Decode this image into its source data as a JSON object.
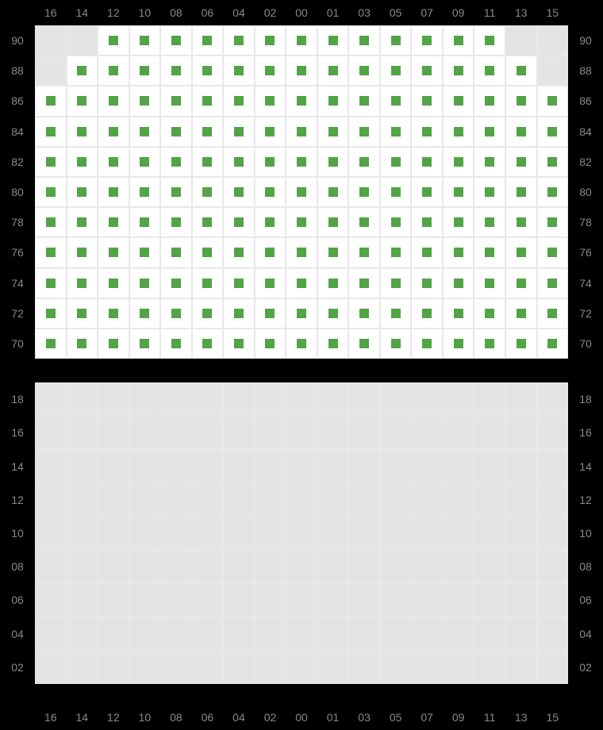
{
  "cols": [
    "16",
    "14",
    "12",
    "10",
    "08",
    "06",
    "04",
    "02",
    "00",
    "01",
    "03",
    "05",
    "07",
    "09",
    "11",
    "13",
    "15"
  ],
  "upper": {
    "rows": [
      "90",
      "88",
      "86",
      "84",
      "82",
      "80",
      "78",
      "76",
      "74",
      "72",
      "70"
    ],
    "cell_color_available": "#ffffff",
    "cell_color_unavailable": "#e4e4e4",
    "marker_color": "#52a447",
    "border_color": "#e8e8e8",
    "cells": {
      "90": {
        "16": 0,
        "14": 0,
        "12": 1,
        "10": 1,
        "08": 1,
        "06": 1,
        "04": 1,
        "02": 1,
        "00": 1,
        "01": 1,
        "03": 1,
        "05": 1,
        "07": 1,
        "09": 1,
        "11": 1,
        "13": 0,
        "15": 0
      },
      "88": {
        "16": 0,
        "14": 1,
        "12": 1,
        "10": 1,
        "08": 1,
        "06": 1,
        "04": 1,
        "02": 1,
        "00": 1,
        "01": 1,
        "03": 1,
        "05": 1,
        "07": 1,
        "09": 1,
        "11": 1,
        "13": 1,
        "15": 0
      },
      "86": {
        "16": 1,
        "14": 1,
        "12": 1,
        "10": 1,
        "08": 1,
        "06": 1,
        "04": 1,
        "02": 1,
        "00": 1,
        "01": 1,
        "03": 1,
        "05": 1,
        "07": 1,
        "09": 1,
        "11": 1,
        "13": 1,
        "15": 1
      },
      "84": {
        "16": 1,
        "14": 1,
        "12": 1,
        "10": 1,
        "08": 1,
        "06": 1,
        "04": 1,
        "02": 1,
        "00": 1,
        "01": 1,
        "03": 1,
        "05": 1,
        "07": 1,
        "09": 1,
        "11": 1,
        "13": 1,
        "15": 1
      },
      "82": {
        "16": 1,
        "14": 1,
        "12": 1,
        "10": 1,
        "08": 1,
        "06": 1,
        "04": 1,
        "02": 1,
        "00": 1,
        "01": 1,
        "03": 1,
        "05": 1,
        "07": 1,
        "09": 1,
        "11": 1,
        "13": 1,
        "15": 1
      },
      "80": {
        "16": 1,
        "14": 1,
        "12": 1,
        "10": 1,
        "08": 1,
        "06": 1,
        "04": 1,
        "02": 1,
        "00": 1,
        "01": 1,
        "03": 1,
        "05": 1,
        "07": 1,
        "09": 1,
        "11": 1,
        "13": 1,
        "15": 1
      },
      "78": {
        "16": 1,
        "14": 1,
        "12": 1,
        "10": 1,
        "08": 1,
        "06": 1,
        "04": 1,
        "02": 1,
        "00": 1,
        "01": 1,
        "03": 1,
        "05": 1,
        "07": 1,
        "09": 1,
        "11": 1,
        "13": 1,
        "15": 1
      },
      "76": {
        "16": 1,
        "14": 1,
        "12": 1,
        "10": 1,
        "08": 1,
        "06": 1,
        "04": 1,
        "02": 1,
        "00": 1,
        "01": 1,
        "03": 1,
        "05": 1,
        "07": 1,
        "09": 1,
        "11": 1,
        "13": 1,
        "15": 1
      },
      "74": {
        "16": 1,
        "14": 1,
        "12": 1,
        "10": 1,
        "08": 1,
        "06": 1,
        "04": 1,
        "02": 1,
        "00": 1,
        "01": 1,
        "03": 1,
        "05": 1,
        "07": 1,
        "09": 1,
        "11": 1,
        "13": 1,
        "15": 1
      },
      "72": {
        "16": 1,
        "14": 1,
        "12": 1,
        "10": 1,
        "08": 1,
        "06": 1,
        "04": 1,
        "02": 1,
        "00": 1,
        "01": 1,
        "03": 1,
        "05": 1,
        "07": 1,
        "09": 1,
        "11": 1,
        "13": 1,
        "15": 1
      },
      "70": {
        "16": 1,
        "14": 1,
        "12": 1,
        "10": 1,
        "08": 1,
        "06": 1,
        "04": 1,
        "02": 1,
        "00": 1,
        "01": 1,
        "03": 1,
        "05": 1,
        "07": 1,
        "09": 1,
        "11": 1,
        "13": 1,
        "15": 1
      }
    }
  },
  "lower": {
    "rows": [
      "18",
      "16",
      "14",
      "12",
      "10",
      "08",
      "06",
      "04",
      "02"
    ],
    "cell_color_unavailable": "#e4e4e4",
    "border_color": "#e8e8e8",
    "cells": {
      "18": {
        "16": 0,
        "14": 0,
        "12": 0,
        "10": 0,
        "08": 0,
        "06": 0,
        "04": 0,
        "02": 0,
        "00": 0,
        "01": 0,
        "03": 0,
        "05": 0,
        "07": 0,
        "09": 0,
        "11": 0,
        "13": 0,
        "15": 0
      },
      "16": {
        "16": 0,
        "14": 0,
        "12": 0,
        "10": 0,
        "08": 0,
        "06": 0,
        "04": 0,
        "02": 0,
        "00": 0,
        "01": 0,
        "03": 0,
        "05": 0,
        "07": 0,
        "09": 0,
        "11": 0,
        "13": 0,
        "15": 0
      },
      "14": {
        "16": 0,
        "14": 0,
        "12": 0,
        "10": 0,
        "08": 0,
        "06": 0,
        "04": 0,
        "02": 0,
        "00": 0,
        "01": 0,
        "03": 0,
        "05": 0,
        "07": 0,
        "09": 0,
        "11": 0,
        "13": 0,
        "15": 0
      },
      "12": {
        "16": 0,
        "14": 0,
        "12": 0,
        "10": 0,
        "08": 0,
        "06": 0,
        "04": 0,
        "02": 0,
        "00": 0,
        "01": 0,
        "03": 0,
        "05": 0,
        "07": 0,
        "09": 0,
        "11": 0,
        "13": 0,
        "15": 0
      },
      "10": {
        "16": 0,
        "14": 0,
        "12": 0,
        "10": 0,
        "08": 0,
        "06": 0,
        "04": 0,
        "02": 0,
        "00": 0,
        "01": 0,
        "03": 0,
        "05": 0,
        "07": 0,
        "09": 0,
        "11": 0,
        "13": 0,
        "15": 0
      },
      "08": {
        "16": 0,
        "14": 0,
        "12": 0,
        "10": 0,
        "08": 0,
        "06": 0,
        "04": 0,
        "02": 0,
        "00": 0,
        "01": 0,
        "03": 0,
        "05": 0,
        "07": 0,
        "09": 0,
        "11": 0,
        "13": 0,
        "15": 0
      },
      "06": {
        "16": 0,
        "14": 0,
        "12": 0,
        "10": 0,
        "08": 0,
        "06": 0,
        "04": 0,
        "02": 0,
        "00": 0,
        "01": 0,
        "03": 0,
        "05": 0,
        "07": 0,
        "09": 0,
        "11": 0,
        "13": 0,
        "15": 0
      },
      "04": {
        "16": 0,
        "14": 0,
        "12": 0,
        "10": 0,
        "08": 0,
        "06": 0,
        "04": 0,
        "02": 0,
        "00": 0,
        "01": 0,
        "03": 0,
        "05": 0,
        "07": 0,
        "09": 0,
        "11": 0,
        "13": 0,
        "15": 0
      },
      "02": {
        "16": 0,
        "14": 0,
        "12": 0,
        "10": 0,
        "08": 0,
        "06": 0,
        "04": 0,
        "02": 0,
        "00": 0,
        "01": 0,
        "03": 0,
        "05": 0,
        "07": 0,
        "09": 0,
        "11": 0,
        "13": 0,
        "15": 0
      }
    }
  }
}
